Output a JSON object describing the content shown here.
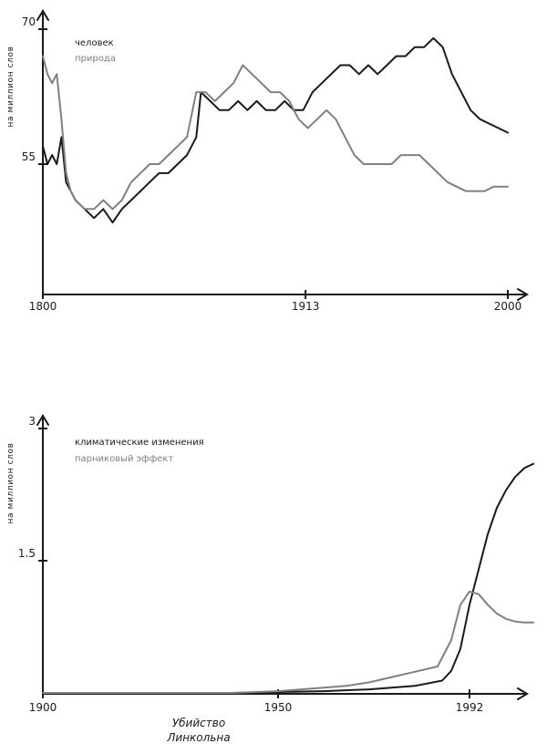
{
  "chart_data": [
    {
      "type": "line",
      "ylabel": "на миллион слов",
      "xlim": [
        1800,
        2000
      ],
      "ylim": [
        0,
        70
      ],
      "yticks": [
        {
          "value": 55,
          "label": "55"
        },
        {
          "value": 70,
          "label": "70"
        }
      ],
      "xticks": [
        {
          "value": 1800,
          "label": "1800"
        },
        {
          "value": 1913,
          "label": "1913"
        },
        {
          "value": 2000,
          "label": "2000"
        }
      ],
      "series": [
        {
          "name": "человек",
          "color": "#1a1a1a",
          "points": [
            [
              1800,
              57
            ],
            [
              1802,
              55
            ],
            [
              1804,
              56
            ],
            [
              1806,
              55
            ],
            [
              1808,
              58
            ],
            [
              1810,
              53
            ],
            [
              1812,
              52
            ],
            [
              1814,
              51
            ],
            [
              1818,
              50
            ],
            [
              1822,
              49
            ],
            [
              1826,
              50
            ],
            [
              1830,
              48.5
            ],
            [
              1834,
              50
            ],
            [
              1838,
              51
            ],
            [
              1842,
              52
            ],
            [
              1846,
              53
            ],
            [
              1850,
              54
            ],
            [
              1854,
              54
            ],
            [
              1858,
              55
            ],
            [
              1862,
              56
            ],
            [
              1866,
              58
            ],
            [
              1868,
              63
            ],
            [
              1872,
              62
            ],
            [
              1876,
              61
            ],
            [
              1880,
              61
            ],
            [
              1884,
              62
            ],
            [
              1888,
              61
            ],
            [
              1892,
              62
            ],
            [
              1896,
              61
            ],
            [
              1900,
              61
            ],
            [
              1904,
              62
            ],
            [
              1908,
              61
            ],
            [
              1912,
              61
            ],
            [
              1916,
              63
            ],
            [
              1920,
              64
            ],
            [
              1924,
              65
            ],
            [
              1928,
              66
            ],
            [
              1932,
              66
            ],
            [
              1936,
              65
            ],
            [
              1940,
              66
            ],
            [
              1944,
              65
            ],
            [
              1948,
              66
            ],
            [
              1952,
              67
            ],
            [
              1956,
              67
            ],
            [
              1960,
              68
            ],
            [
              1964,
              68
            ],
            [
              1968,
              69
            ],
            [
              1972,
              68
            ],
            [
              1976,
              65
            ],
            [
              1980,
              63
            ],
            [
              1984,
              61
            ],
            [
              1988,
              60
            ],
            [
              1992,
              59.5
            ],
            [
              1996,
              59
            ],
            [
              2000,
              58.5
            ]
          ]
        },
        {
          "name": "природа",
          "color": "#808080",
          "points": [
            [
              1800,
              67
            ],
            [
              1802,
              65
            ],
            [
              1804,
              64
            ],
            [
              1806,
              65
            ],
            [
              1808,
              60
            ],
            [
              1810,
              54
            ],
            [
              1812,
              52
            ],
            [
              1814,
              51
            ],
            [
              1818,
              50
            ],
            [
              1822,
              50
            ],
            [
              1826,
              51
            ],
            [
              1830,
              50
            ],
            [
              1834,
              51
            ],
            [
              1838,
              53
            ],
            [
              1842,
              54
            ],
            [
              1846,
              55
            ],
            [
              1850,
              55
            ],
            [
              1854,
              56
            ],
            [
              1858,
              57
            ],
            [
              1862,
              58
            ],
            [
              1866,
              63
            ],
            [
              1870,
              63
            ],
            [
              1874,
              62
            ],
            [
              1878,
              63
            ],
            [
              1882,
              64
            ],
            [
              1886,
              66
            ],
            [
              1890,
              65
            ],
            [
              1894,
              64
            ],
            [
              1898,
              63
            ],
            [
              1902,
              63
            ],
            [
              1906,
              62
            ],
            [
              1910,
              60
            ],
            [
              1914,
              59
            ],
            [
              1918,
              60
            ],
            [
              1922,
              61
            ],
            [
              1926,
              60
            ],
            [
              1930,
              58
            ],
            [
              1934,
              56
            ],
            [
              1938,
              55
            ],
            [
              1942,
              55
            ],
            [
              1946,
              55
            ],
            [
              1950,
              55
            ],
            [
              1954,
              56
            ],
            [
              1958,
              56
            ],
            [
              1962,
              56
            ],
            [
              1966,
              55
            ],
            [
              1970,
              54
            ],
            [
              1974,
              53
            ],
            [
              1978,
              52.5
            ],
            [
              1982,
              52
            ],
            [
              1986,
              52
            ],
            [
              1990,
              52
            ],
            [
              1994,
              52.5
            ],
            [
              1998,
              52.5
            ],
            [
              2000,
              52.5
            ]
          ]
        }
      ]
    },
    {
      "type": "line",
      "ylabel": "на миллион слов",
      "xlim": [
        1900,
        2010
      ],
      "ylim": [
        0,
        3
      ],
      "yticks": [
        {
          "value": 1.5,
          "label": "1.5"
        },
        {
          "value": 3,
          "label": "3"
        }
      ],
      "xticks": [
        {
          "value": 1900,
          "label": "1900"
        },
        {
          "value": 1950,
          "label": "1950"
        },
        {
          "value": 1992,
          "label": "1992"
        }
      ],
      "annotation": "Убийство Линкольна",
      "series": [
        {
          "name": "климатические изменения",
          "color": "#1a1a1a",
          "points": [
            [
              1900,
              0
            ],
            [
              1920,
              0
            ],
            [
              1940,
              0
            ],
            [
              1950,
              0.01
            ],
            [
              1960,
              0.02
            ],
            [
              1970,
              0.04
            ],
            [
              1980,
              0.08
            ],
            [
              1986,
              0.14
            ],
            [
              1988,
              0.25
            ],
            [
              1990,
              0.5
            ],
            [
              1992,
              1.0
            ],
            [
              1994,
              1.4
            ],
            [
              1996,
              1.8
            ],
            [
              1998,
              2.1
            ],
            [
              2000,
              2.3
            ],
            [
              2002,
              2.45
            ],
            [
              2004,
              2.55
            ],
            [
              2006,
              2.6
            ]
          ]
        },
        {
          "name": "парниковый эффект",
          "color": "#808080",
          "points": [
            [
              1900,
              0
            ],
            [
              1920,
              0
            ],
            [
              1940,
              0
            ],
            [
              1950,
              0.02
            ],
            [
              1960,
              0.06
            ],
            [
              1965,
              0.08
            ],
            [
              1970,
              0.12
            ],
            [
              1975,
              0.18
            ],
            [
              1980,
              0.24
            ],
            [
              1985,
              0.3
            ],
            [
              1988,
              0.6
            ],
            [
              1990,
              1.0
            ],
            [
              1992,
              1.15
            ],
            [
              1994,
              1.12
            ],
            [
              1996,
              1.0
            ],
            [
              1998,
              0.9
            ],
            [
              2000,
              0.84
            ],
            [
              2002,
              0.81
            ],
            [
              2004,
              0.8
            ],
            [
              2006,
              0.8
            ]
          ]
        }
      ]
    }
  ]
}
